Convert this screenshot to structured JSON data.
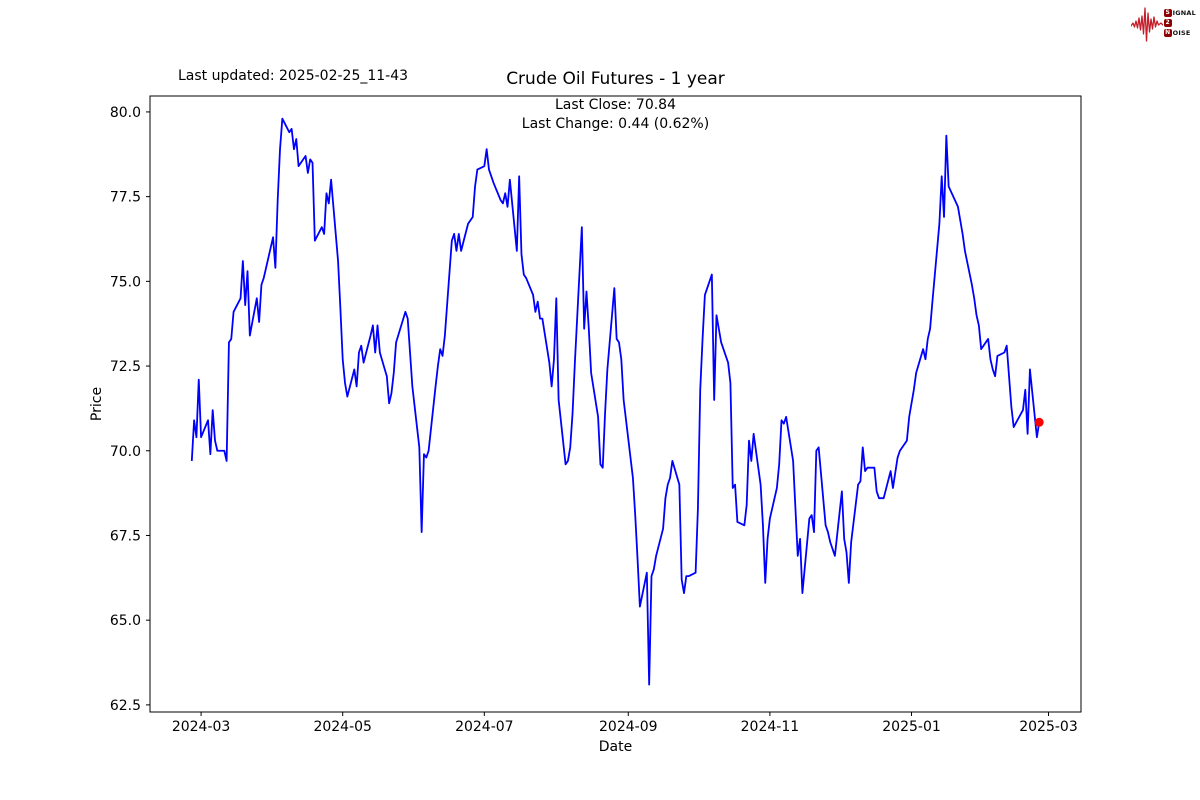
{
  "annotations": {
    "last_updated": "Last updated: 2025-02-25_11-43",
    "subtitle_line1": "Last Close: 70.84",
    "subtitle_line2": "Last Change: 0.44 (0.62%)"
  },
  "logo": {
    "badge1": "S",
    "rest1": "IGNAL",
    "badge2": "2",
    "badge3": "N",
    "rest3": "OISE",
    "waveform_color": "#c41e2a",
    "badge_color": "#8b0000"
  },
  "chart_data": {
    "type": "line",
    "title": "Crude Oil Futures - 1 year",
    "xlabel": "Date",
    "ylabel": "Price",
    "last_close": 70.84,
    "last_change": 0.44,
    "last_change_pct": "0.62%",
    "line_color": "#0000ff",
    "marker_color": "#ff0000",
    "grid": false,
    "legend": "none",
    "x_domain": [
      "2024-02-08",
      "2025-03-15"
    ],
    "y_domain": [
      62.29,
      80.47
    ],
    "x_ticks": [
      {
        "date": "2024-03-01",
        "label": "2024-03"
      },
      {
        "date": "2024-05-01",
        "label": "2024-05"
      },
      {
        "date": "2024-07-01",
        "label": "2024-07"
      },
      {
        "date": "2024-09-01",
        "label": "2024-09"
      },
      {
        "date": "2024-11-01",
        "label": "2024-11"
      },
      {
        "date": "2025-01-01",
        "label": "2025-01"
      },
      {
        "date": "2025-03-01",
        "label": "2025-03"
      }
    ],
    "y_ticks": [
      80.0,
      77.5,
      75.0,
      72.5,
      70.0,
      67.5,
      65.0,
      62.5
    ],
    "series": [
      {
        "name": "Crude Oil Futures price",
        "points": [
          [
            "2024-02-26",
            69.7
          ],
          [
            "2024-02-27",
            70.9
          ],
          [
            "2024-02-28",
            70.4
          ],
          [
            "2024-02-29",
            72.1
          ],
          [
            "2024-03-01",
            70.4
          ],
          [
            "2024-03-04",
            70.9
          ],
          [
            "2024-03-05",
            69.9
          ],
          [
            "2024-03-06",
            71.2
          ],
          [
            "2024-03-07",
            70.3
          ],
          [
            "2024-03-08",
            70.0
          ],
          [
            "2024-03-11",
            70.0
          ],
          [
            "2024-03-12",
            69.7
          ],
          [
            "2024-03-13",
            73.2
          ],
          [
            "2024-03-14",
            73.3
          ],
          [
            "2024-03-15",
            74.1
          ],
          [
            "2024-03-18",
            74.5
          ],
          [
            "2024-03-19",
            75.6
          ],
          [
            "2024-03-20",
            74.3
          ],
          [
            "2024-03-21",
            75.3
          ],
          [
            "2024-03-22",
            73.4
          ],
          [
            "2024-03-25",
            74.5
          ],
          [
            "2024-03-26",
            73.8
          ],
          [
            "2024-03-27",
            74.9
          ],
          [
            "2024-03-28",
            75.1
          ],
          [
            "2024-04-01",
            76.3
          ],
          [
            "2024-04-02",
            75.4
          ],
          [
            "2024-04-03",
            77.4
          ],
          [
            "2024-04-04",
            78.9
          ],
          [
            "2024-04-05",
            79.8
          ],
          [
            "2024-04-08",
            79.4
          ],
          [
            "2024-04-09",
            79.5
          ],
          [
            "2024-04-10",
            78.9
          ],
          [
            "2024-04-11",
            79.2
          ],
          [
            "2024-04-12",
            78.4
          ],
          [
            "2024-04-15",
            78.7
          ],
          [
            "2024-04-16",
            78.2
          ],
          [
            "2024-04-17",
            78.6
          ],
          [
            "2024-04-18",
            78.5
          ],
          [
            "2024-04-19",
            76.2
          ],
          [
            "2024-04-22",
            76.6
          ],
          [
            "2024-04-23",
            76.4
          ],
          [
            "2024-04-24",
            77.6
          ],
          [
            "2024-04-25",
            77.3
          ],
          [
            "2024-04-26",
            78.0
          ],
          [
            "2024-04-29",
            75.6
          ],
          [
            "2024-04-30",
            74.2
          ],
          [
            "2024-05-01",
            72.7
          ],
          [
            "2024-05-02",
            72.0
          ],
          [
            "2024-05-03",
            71.6
          ],
          [
            "2024-05-06",
            72.4
          ],
          [
            "2024-05-07",
            71.9
          ],
          [
            "2024-05-08",
            72.9
          ],
          [
            "2024-05-09",
            73.1
          ],
          [
            "2024-05-10",
            72.6
          ],
          [
            "2024-05-13",
            73.4
          ],
          [
            "2024-05-14",
            73.7
          ],
          [
            "2024-05-15",
            72.9
          ],
          [
            "2024-05-16",
            73.7
          ],
          [
            "2024-05-17",
            72.9
          ],
          [
            "2024-05-20",
            72.2
          ],
          [
            "2024-05-21",
            71.4
          ],
          [
            "2024-05-22",
            71.7
          ],
          [
            "2024-05-23",
            72.3
          ],
          [
            "2024-05-24",
            73.2
          ],
          [
            "2024-05-28",
            74.1
          ],
          [
            "2024-05-29",
            73.9
          ],
          [
            "2024-05-30",
            72.9
          ],
          [
            "2024-05-31",
            71.9
          ],
          [
            "2024-06-03",
            70.1
          ],
          [
            "2024-06-04",
            67.6
          ],
          [
            "2024-06-05",
            69.9
          ],
          [
            "2024-06-06",
            69.8
          ],
          [
            "2024-06-07",
            70.0
          ],
          [
            "2024-06-10",
            71.9
          ],
          [
            "2024-06-11",
            72.5
          ],
          [
            "2024-06-12",
            73.0
          ],
          [
            "2024-06-13",
            72.8
          ],
          [
            "2024-06-14",
            73.4
          ],
          [
            "2024-06-17",
            76.2
          ],
          [
            "2024-06-18",
            76.4
          ],
          [
            "2024-06-19",
            75.9
          ],
          [
            "2024-06-20",
            76.4
          ],
          [
            "2024-06-21",
            75.9
          ],
          [
            "2024-06-24",
            76.7
          ],
          [
            "2024-06-25",
            76.8
          ],
          [
            "2024-06-26",
            76.9
          ],
          [
            "2024-06-27",
            77.8
          ],
          [
            "2024-06-28",
            78.3
          ],
          [
            "2024-07-01",
            78.4
          ],
          [
            "2024-07-02",
            78.9
          ],
          [
            "2024-07-03",
            78.3
          ],
          [
            "2024-07-05",
            77.9
          ],
          [
            "2024-07-08",
            77.4
          ],
          [
            "2024-07-09",
            77.3
          ],
          [
            "2024-07-10",
            77.6
          ],
          [
            "2024-07-11",
            77.2
          ],
          [
            "2024-07-12",
            78.0
          ],
          [
            "2024-07-15",
            75.9
          ],
          [
            "2024-07-16",
            78.1
          ],
          [
            "2024-07-17",
            75.8
          ],
          [
            "2024-07-18",
            75.2
          ],
          [
            "2024-07-19",
            75.1
          ],
          [
            "2024-07-22",
            74.6
          ],
          [
            "2024-07-23",
            74.1
          ],
          [
            "2024-07-24",
            74.4
          ],
          [
            "2024-07-25",
            73.9
          ],
          [
            "2024-07-26",
            73.9
          ],
          [
            "2024-07-29",
            72.6
          ],
          [
            "2024-07-30",
            71.9
          ],
          [
            "2024-07-31",
            72.7
          ],
          [
            "2024-08-01",
            74.5
          ],
          [
            "2024-08-02",
            71.5
          ],
          [
            "2024-08-05",
            69.6
          ],
          [
            "2024-08-06",
            69.7
          ],
          [
            "2024-08-07",
            70.1
          ],
          [
            "2024-08-08",
            71.1
          ],
          [
            "2024-08-09",
            72.6
          ],
          [
            "2024-08-12",
            76.6
          ],
          [
            "2024-08-13",
            73.6
          ],
          [
            "2024-08-14",
            74.7
          ],
          [
            "2024-08-15",
            73.6
          ],
          [
            "2024-08-16",
            72.3
          ],
          [
            "2024-08-19",
            71.0
          ],
          [
            "2024-08-20",
            69.6
          ],
          [
            "2024-08-21",
            69.5
          ],
          [
            "2024-08-22",
            71.1
          ],
          [
            "2024-08-23",
            72.4
          ],
          [
            "2024-08-26",
            74.8
          ],
          [
            "2024-08-27",
            73.3
          ],
          [
            "2024-08-28",
            73.2
          ],
          [
            "2024-08-29",
            72.7
          ],
          [
            "2024-08-30",
            71.5
          ],
          [
            "2024-09-03",
            69.2
          ],
          [
            "2024-09-04",
            68.1
          ],
          [
            "2024-09-05",
            66.8
          ],
          [
            "2024-09-06",
            65.4
          ],
          [
            "2024-09-09",
            66.4
          ],
          [
            "2024-09-10",
            63.1
          ],
          [
            "2024-09-11",
            66.3
          ],
          [
            "2024-09-12",
            66.5
          ],
          [
            "2024-09-13",
            66.9
          ],
          [
            "2024-09-16",
            67.7
          ],
          [
            "2024-09-17",
            68.6
          ],
          [
            "2024-09-18",
            69.0
          ],
          [
            "2024-09-19",
            69.2
          ],
          [
            "2024-09-20",
            69.7
          ],
          [
            "2024-09-23",
            69.0
          ],
          [
            "2024-09-24",
            66.2
          ],
          [
            "2024-09-25",
            65.8
          ],
          [
            "2024-09-26",
            66.3
          ],
          [
            "2024-09-27",
            66.3
          ],
          [
            "2024-09-30",
            66.4
          ],
          [
            "2024-10-01",
            68.3
          ],
          [
            "2024-10-02",
            71.8
          ],
          [
            "2024-10-03",
            73.3
          ],
          [
            "2024-10-04",
            74.6
          ],
          [
            "2024-10-07",
            75.2
          ],
          [
            "2024-10-08",
            71.5
          ],
          [
            "2024-10-09",
            74.0
          ],
          [
            "2024-10-10",
            73.6
          ],
          [
            "2024-10-11",
            73.2
          ],
          [
            "2024-10-14",
            72.6
          ],
          [
            "2024-10-15",
            72.0
          ],
          [
            "2024-10-16",
            68.9
          ],
          [
            "2024-10-17",
            69.0
          ],
          [
            "2024-10-18",
            67.9
          ],
          [
            "2024-10-21",
            67.8
          ],
          [
            "2024-10-22",
            68.4
          ],
          [
            "2024-10-23",
            70.3
          ],
          [
            "2024-10-24",
            69.7
          ],
          [
            "2024-10-25",
            70.5
          ],
          [
            "2024-10-28",
            69.0
          ],
          [
            "2024-10-29",
            67.8
          ],
          [
            "2024-10-30",
            66.1
          ],
          [
            "2024-10-31",
            67.4
          ],
          [
            "2024-11-01",
            68.0
          ],
          [
            "2024-11-04",
            68.9
          ],
          [
            "2024-11-05",
            69.6
          ],
          [
            "2024-11-06",
            70.9
          ],
          [
            "2024-11-07",
            70.8
          ],
          [
            "2024-11-08",
            71.0
          ],
          [
            "2024-11-11",
            69.7
          ],
          [
            "2024-11-12",
            68.3
          ],
          [
            "2024-11-13",
            66.9
          ],
          [
            "2024-11-14",
            67.4
          ],
          [
            "2024-11-15",
            65.8
          ],
          [
            "2024-11-18",
            68.0
          ],
          [
            "2024-11-19",
            68.1
          ],
          [
            "2024-11-20",
            67.6
          ],
          [
            "2024-11-21",
            70.0
          ],
          [
            "2024-11-22",
            70.1
          ],
          [
            "2024-11-25",
            67.8
          ],
          [
            "2024-11-26",
            67.6
          ],
          [
            "2024-11-27",
            67.3
          ],
          [
            "2024-11-29",
            66.9
          ],
          [
            "2024-12-02",
            68.8
          ],
          [
            "2024-12-03",
            67.4
          ],
          [
            "2024-12-04",
            67.0
          ],
          [
            "2024-12-05",
            66.1
          ],
          [
            "2024-12-06",
            67.3
          ],
          [
            "2024-12-09",
            69.0
          ],
          [
            "2024-12-10",
            69.1
          ],
          [
            "2024-12-11",
            70.1
          ],
          [
            "2024-12-12",
            69.4
          ],
          [
            "2024-12-13",
            69.5
          ],
          [
            "2024-12-16",
            69.5
          ],
          [
            "2024-12-17",
            68.8
          ],
          [
            "2024-12-18",
            68.6
          ],
          [
            "2024-12-19",
            68.6
          ],
          [
            "2024-12-20",
            68.6
          ],
          [
            "2024-12-23",
            69.4
          ],
          [
            "2024-12-24",
            68.9
          ],
          [
            "2024-12-26",
            69.8
          ],
          [
            "2024-12-27",
            70.0
          ],
          [
            "2024-12-30",
            70.3
          ],
          [
            "2024-12-31",
            71.0
          ],
          [
            "2025-01-02",
            71.8
          ],
          [
            "2025-01-03",
            72.3
          ],
          [
            "2025-01-06",
            73.0
          ],
          [
            "2025-01-07",
            72.7
          ],
          [
            "2025-01-08",
            73.3
          ],
          [
            "2025-01-09",
            73.6
          ],
          [
            "2025-01-10",
            74.4
          ],
          [
            "2025-01-13",
            76.7
          ],
          [
            "2025-01-14",
            78.1
          ],
          [
            "2025-01-15",
            76.9
          ],
          [
            "2025-01-16",
            79.3
          ],
          [
            "2025-01-17",
            77.8
          ],
          [
            "2025-01-21",
            77.2
          ],
          [
            "2025-01-22",
            76.8
          ],
          [
            "2025-01-23",
            76.4
          ],
          [
            "2025-01-24",
            75.9
          ],
          [
            "2025-01-27",
            74.9
          ],
          [
            "2025-01-28",
            74.5
          ],
          [
            "2025-01-29",
            74.0
          ],
          [
            "2025-01-30",
            73.7
          ],
          [
            "2025-01-31",
            73.0
          ],
          [
            "2025-02-03",
            73.3
          ],
          [
            "2025-02-04",
            72.7
          ],
          [
            "2025-02-05",
            72.4
          ],
          [
            "2025-02-06",
            72.2
          ],
          [
            "2025-02-07",
            72.8
          ],
          [
            "2025-02-10",
            72.9
          ],
          [
            "2025-02-11",
            73.1
          ],
          [
            "2025-02-12",
            72.2
          ],
          [
            "2025-02-13",
            71.3
          ],
          [
            "2025-02-14",
            70.7
          ],
          [
            "2025-02-18",
            71.2
          ],
          [
            "2025-02-19",
            71.8
          ],
          [
            "2025-02-20",
            70.5
          ],
          [
            "2025-02-21",
            72.4
          ],
          [
            "2025-02-24",
            70.4
          ],
          [
            "2025-02-25",
            70.84
          ]
        ]
      }
    ]
  }
}
